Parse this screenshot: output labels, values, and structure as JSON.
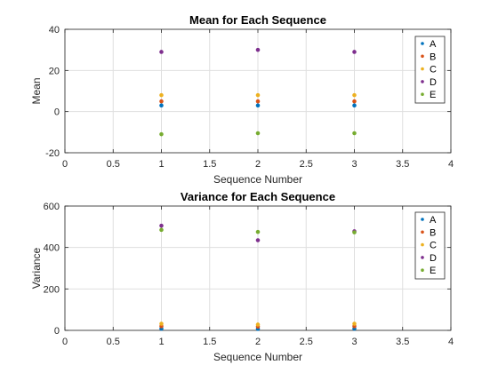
{
  "chart_data": [
    {
      "type": "scatter",
      "title": "Mean for Each Sequence",
      "xlabel": "Sequence Number",
      "ylabel": "Mean",
      "xlim": [
        0,
        4
      ],
      "ylim": [
        -20,
        40
      ],
      "xticks": [
        0,
        0.5,
        1,
        1.5,
        2,
        2.5,
        3,
        3.5,
        4
      ],
      "xtick_labels": [
        "0",
        "0.5",
        "1",
        "1.5",
        "2",
        "2.5",
        "3",
        "3.5",
        "4"
      ],
      "yticks": [
        -20,
        0,
        20,
        40
      ],
      "ytick_labels": [
        "-20",
        "0",
        "20",
        "40"
      ],
      "grid": true,
      "legend_position": "top-right",
      "x": [
        1,
        2,
        3
      ],
      "series": [
        {
          "name": "A",
          "color": "#0072BD",
          "values": [
            3,
            3,
            3
          ]
        },
        {
          "name": "B",
          "color": "#D95319",
          "values": [
            5,
            5,
            5
          ]
        },
        {
          "name": "C",
          "color": "#EDB120",
          "values": [
            8,
            8,
            8
          ]
        },
        {
          "name": "D",
          "color": "#7E2F8E",
          "values": [
            29,
            30,
            29
          ]
        },
        {
          "name": "E",
          "color": "#77AC30",
          "values": [
            -11,
            -10.5,
            -10.5
          ]
        }
      ]
    },
    {
      "type": "scatter",
      "title": "Variance for Each Sequence",
      "xlabel": "Sequence Number",
      "ylabel": "Variance",
      "xlim": [
        0,
        4
      ],
      "ylim": [
        0,
        600
      ],
      "xticks": [
        0,
        0.5,
        1,
        1.5,
        2,
        2.5,
        3,
        3.5,
        4
      ],
      "xtick_labels": [
        "0",
        "0.5",
        "1",
        "1.5",
        "2",
        "2.5",
        "3",
        "3.5",
        "4"
      ],
      "yticks": [
        0,
        200,
        400,
        600
      ],
      "ytick_labels": [
        "0",
        "200",
        "400",
        "600"
      ],
      "grid": true,
      "legend_position": "top-right",
      "x": [
        1,
        2,
        3
      ],
      "series": [
        {
          "name": "A",
          "color": "#0072BD",
          "values": [
            8,
            7,
            8
          ]
        },
        {
          "name": "B",
          "color": "#D95319",
          "values": [
            20,
            18,
            20
          ]
        },
        {
          "name": "C",
          "color": "#EDB120",
          "values": [
            32,
            28,
            32
          ]
        },
        {
          "name": "D",
          "color": "#7E2F8E",
          "values": [
            505,
            435,
            478
          ]
        },
        {
          "name": "E",
          "color": "#77AC30",
          "values": [
            485,
            475,
            473
          ]
        }
      ]
    }
  ]
}
